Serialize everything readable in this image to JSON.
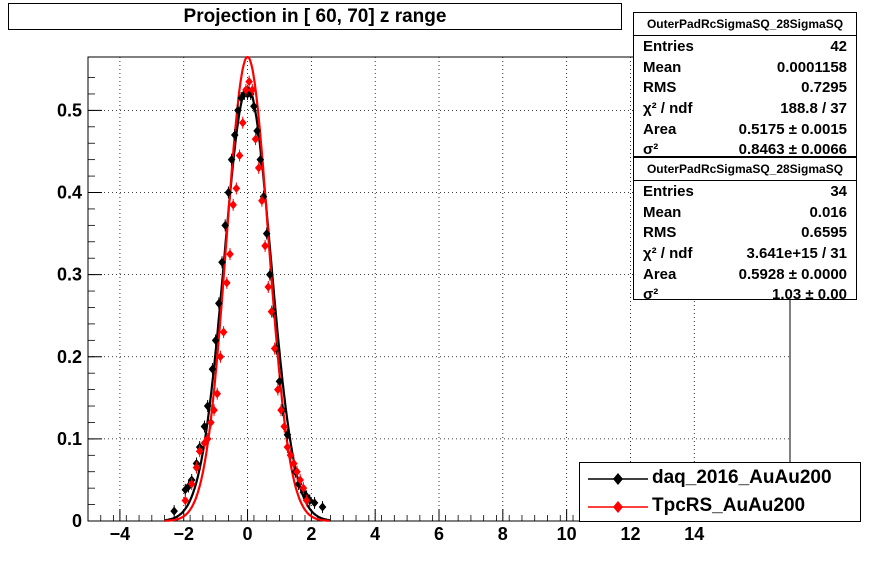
{
  "title": "Projection in [  60,  70] z range",
  "stat_boxes": [
    {
      "name": "OuterPadRcSigmaSQ_28SigmaSQ",
      "rows": [
        {
          "key": "Entries",
          "value": "42"
        },
        {
          "key": "Mean",
          "value": "0.0001158"
        },
        {
          "key": "RMS",
          "value": "0.7295"
        },
        {
          "key": "χ² / ndf",
          "value": "188.8 / 37"
        },
        {
          "key": "Area",
          "value": "0.5175 ± 0.0015"
        },
        {
          "key": "σ²",
          "value": "0.8463 ± 0.0066"
        }
      ]
    },
    {
      "name": "OuterPadRcSigmaSQ_28SigmaSQ",
      "rows": [
        {
          "key": "Entries",
          "value": "34"
        },
        {
          "key": "Mean",
          "value": "0.016"
        },
        {
          "key": "RMS",
          "value": "0.6595"
        },
        {
          "key": "χ² / ndf",
          "value": "3.641e+15 / 31"
        },
        {
          "key": "Area",
          "value": "0.5928 ± 0.0000"
        },
        {
          "key": "σ²",
          "value": "1.03 ± 0.00"
        }
      ]
    }
  ],
  "legend": [
    {
      "label": "daq_2016_AuAu200",
      "color": "#000000"
    },
    {
      "label": "TpcRS_AuAu200",
      "color": "#ff0000"
    }
  ],
  "chart_data": {
    "type": "scatter",
    "title": "Projection in [  60,  70] z range",
    "xlabel": "",
    "ylabel": "",
    "xlim": [
      -5,
      17
    ],
    "ylim": [
      0,
      0.565
    ],
    "x_ticks": [
      "−4",
      "−2",
      "0",
      "2",
      "4",
      "6",
      "8",
      "10",
      "12",
      "14"
    ],
    "x_tick_values": [
      -4,
      -2,
      0,
      2,
      4,
      6,
      8,
      10,
      12,
      14
    ],
    "y_ticks": [
      "0",
      "0.1",
      "0.2",
      "0.3",
      "0.4",
      "0.5"
    ],
    "y_tick_values": [
      0,
      0.1,
      0.2,
      0.3,
      0.4,
      0.5
    ],
    "grid": true,
    "legend_position": "bottom-right",
    "series": [
      {
        "name": "daq_2016_AuAu200",
        "color": "#000000",
        "x": [
          -2.3,
          -1.95,
          -1.85,
          -1.75,
          -1.6,
          -1.5,
          -1.35,
          -1.25,
          -1.1,
          -1.0,
          -0.9,
          -0.8,
          -0.7,
          -0.6,
          -0.5,
          -0.4,
          -0.3,
          -0.2,
          -0.1,
          0.0,
          0.1,
          0.2,
          0.3,
          0.4,
          0.5,
          0.6,
          0.7,
          0.8,
          0.9,
          1.0,
          1.1,
          1.25,
          1.35,
          1.5,
          1.6,
          1.75,
          1.85,
          1.95,
          2.1,
          2.35
        ],
        "y": [
          0.012,
          0.038,
          0.042,
          0.05,
          0.07,
          0.09,
          0.115,
          0.14,
          0.185,
          0.22,
          0.265,
          0.315,
          0.36,
          0.4,
          0.44,
          0.47,
          0.5,
          0.515,
          0.52,
          0.52,
          0.52,
          0.505,
          0.475,
          0.44,
          0.395,
          0.35,
          0.3,
          0.255,
          0.21,
          0.17,
          0.135,
          0.105,
          0.08,
          0.06,
          0.045,
          0.035,
          0.03,
          0.025,
          0.022,
          0.017
        ]
      },
      {
        "name": "TpcRS_AuAu200",
        "color": "#ff0000",
        "x": [
          -1.95,
          -1.75,
          -1.6,
          -1.5,
          -1.35,
          -1.25,
          -1.15,
          -1.05,
          -0.95,
          -0.85,
          -0.75,
          -0.65,
          -0.55,
          -0.45,
          -0.35,
          -0.25,
          -0.15,
          -0.05,
          0.05,
          0.15,
          0.25,
          0.35,
          0.45,
          0.55,
          0.65,
          0.75,
          0.85,
          0.95,
          1.05,
          1.15,
          1.25,
          1.35,
          1.45,
          1.55,
          1.65,
          1.75,
          1.85
        ],
        "y": [
          0.025,
          0.045,
          0.065,
          0.085,
          0.095,
          0.1,
          0.12,
          0.135,
          0.155,
          0.2,
          0.23,
          0.29,
          0.325,
          0.385,
          0.405,
          0.445,
          0.485,
          0.525,
          0.535,
          0.525,
          0.465,
          0.43,
          0.39,
          0.335,
          0.285,
          0.255,
          0.21,
          0.16,
          0.135,
          0.115,
          0.09,
          0.08,
          0.07,
          0.06,
          0.05,
          0.04,
          0.025
        ]
      }
    ],
    "fits": [
      {
        "name": "daq_2016_AuAu200",
        "color": "#000000",
        "mean": 0.0001158,
        "sigma": 0.7295,
        "peak": 0.528
      },
      {
        "name": "TpcRS_AuAu200",
        "color": "#ff0000",
        "mean": 0.0,
        "sigma": 0.6595,
        "peak": 0.565
      }
    ]
  }
}
